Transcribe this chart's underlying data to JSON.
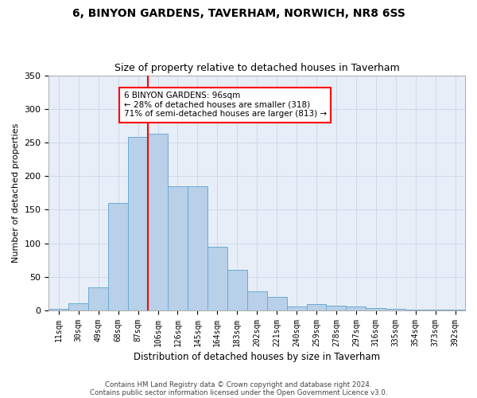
{
  "title": "6, BINYON GARDENS, TAVERHAM, NORWICH, NR8 6SS",
  "subtitle": "Size of property relative to detached houses in Taverham",
  "xlabel": "Distribution of detached houses by size in Taverham",
  "ylabel": "Number of detached properties",
  "categories": [
    "11sqm",
    "30sqm",
    "49sqm",
    "68sqm",
    "87sqm",
    "106sqm",
    "126sqm",
    "145sqm",
    "164sqm",
    "183sqm",
    "202sqm",
    "221sqm",
    "240sqm",
    "259sqm",
    "278sqm",
    "297sqm",
    "316sqm",
    "335sqm",
    "354sqm",
    "373sqm",
    "392sqm"
  ],
  "bar_heights": [
    2,
    11,
    35,
    160,
    258,
    263,
    185,
    185,
    95,
    60,
    28,
    20,
    6,
    10,
    7,
    6,
    4,
    2,
    1,
    1,
    1
  ],
  "bar_color": "#b8d0e8",
  "bar_edge_color": "#6aaad4",
  "vline_x": 5,
  "vline_color": "red",
  "annotation_text": "6 BINYON GARDENS: 96sqm\n← 28% of detached houses are smaller (318)\n71% of semi-detached houses are larger (813) →",
  "footer_line1": "Contains HM Land Registry data © Crown copyright and database right 2024.",
  "footer_line2": "Contains public sector information licensed under the Open Government Licence v3.0.",
  "ylim": [
    0,
    350
  ],
  "background_color": "#ffffff",
  "grid_color": "#ccd8ec",
  "ax_bg_color": "#e8eef8"
}
